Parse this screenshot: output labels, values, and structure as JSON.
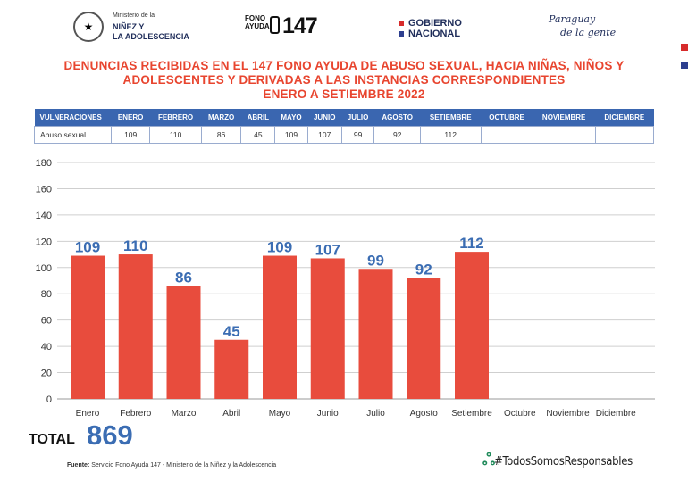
{
  "header": {
    "ministry_small": "Ministerio de la",
    "ministry_line1": "NIÑEZ Y",
    "ministry_line2": "LA ADOLESCENCIA",
    "fono_line1": "FONO",
    "fono_line2": "AYUDA",
    "fono_number": "147",
    "gob_line1": "GOBIERNO",
    "gob_line2": "NACIONAL",
    "slogan_line1": "Paraguay",
    "slogan_line2": "de la gente"
  },
  "title": {
    "line1": "DENUNCIAS RECIBIDAS EN EL 147 FONO AYUDA DE ABUSO SEXUAL, HACIA NIÑAS, NIÑOS Y",
    "line2": "ADOLESCENTES  Y DERIVADAS A LAS INSTANCIAS CORRESPONDIENTES",
    "line3": "ENERO A SETIEMBRE 2022"
  },
  "table": {
    "headers": [
      "VULNERACIONES",
      "ENERO",
      "FEBRERO",
      "MARZO",
      "ABRIL",
      "MAYO",
      "JUNIO",
      "JULIO",
      "AGOSTO",
      "SETIEMBRE",
      "OCTUBRE",
      "NOVIEMBRE",
      "DICIEMBRE"
    ],
    "row": [
      "Abuso sexual",
      "109",
      "110",
      "86",
      "45",
      "109",
      "107",
      "99",
      "92",
      "112",
      "",
      "",
      ""
    ]
  },
  "chart_data": {
    "type": "bar",
    "categories": [
      "Enero",
      "Febrero",
      "Marzo",
      "Abril",
      "Mayo",
      "Junio",
      "Julio",
      "Agosto",
      "Setiembre",
      "Octubre",
      "Noviembre",
      "Diciembre"
    ],
    "values": [
      109,
      110,
      86,
      45,
      109,
      107,
      99,
      92,
      112,
      null,
      null,
      null
    ],
    "ylim": [
      0,
      180
    ],
    "yticks": [
      0,
      20,
      40,
      60,
      80,
      100,
      120,
      140,
      160,
      180
    ],
    "grid": true,
    "bar_color": "#e84c3d",
    "label_color": "#3b6db3"
  },
  "total": {
    "label": "TOTAL",
    "value": "869"
  },
  "footer": {
    "source_label": "Fuente:",
    "source_text": " Servicio Fono Ayuda 147 - Ministerio de la Niñez y la Adolescencia",
    "hashtag": "#TodosSomosResponsables"
  }
}
